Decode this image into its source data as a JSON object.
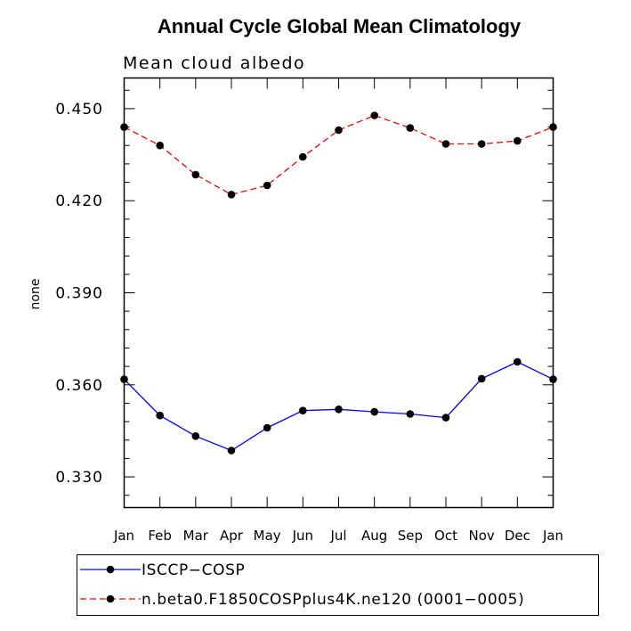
{
  "chart_data": {
    "type": "line",
    "title": "Annual Cycle Global Mean Climatology",
    "subtitle": "Mean cloud albedo",
    "xlabel": "",
    "ylabel": "none",
    "categories": [
      "Jan",
      "Feb",
      "Mar",
      "Apr",
      "May",
      "Jun",
      "Jul",
      "Aug",
      "Sep",
      "Oct",
      "Nov",
      "Dec",
      "Jan"
    ],
    "ylim": [
      0.32,
      0.46
    ],
    "yticks": [
      "0.330",
      "0.360",
      "0.390",
      "0.420",
      "0.450"
    ],
    "legend_position": "bottom",
    "series": [
      {
        "name": "ISCCP−COSP",
        "color": "#0000ff",
        "dash": "solid",
        "values": [
          0.3618,
          0.35,
          0.3433,
          0.3386,
          0.346,
          0.3516,
          0.352,
          0.3512,
          0.3505,
          0.3493,
          0.362,
          0.3675,
          0.3618
        ]
      },
      {
        "name": "n.beta0.F1850COSPplus4K.ne120 (0001−0005)",
        "color": "#ff0000",
        "dash": "dashed",
        "values": [
          0.444,
          0.438,
          0.4285,
          0.422,
          0.425,
          0.4343,
          0.443,
          0.4478,
          0.4437,
          0.4385,
          0.4385,
          0.4395,
          0.444
        ]
      }
    ]
  }
}
